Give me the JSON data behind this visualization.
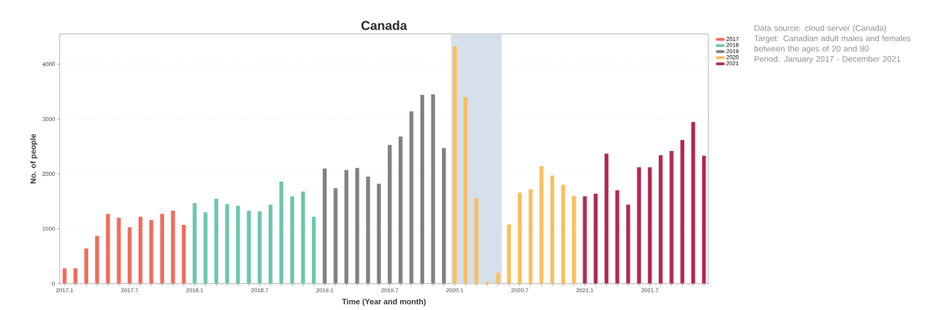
{
  "chart_data": {
    "type": "bar",
    "title": "Canada",
    "xlabel": "Time (Year and month)",
    "ylabel": "No. of people",
    "categories": [
      "2017.1",
      null,
      null,
      null,
      null,
      null,
      "2017.7",
      null,
      null,
      null,
      null,
      null,
      "2018.1",
      null,
      null,
      null,
      null,
      null,
      "2018.7",
      null,
      null,
      null,
      null,
      null,
      "2019.1",
      null,
      null,
      null,
      null,
      null,
      "2019.7",
      null,
      null,
      null,
      null,
      null,
      "2020.1",
      null,
      null,
      null,
      null,
      null,
      "2020.7",
      null,
      null,
      null,
      null,
      null,
      "2021.1",
      null,
      null,
      null,
      null,
      null,
      "2021.7",
      null,
      null,
      null,
      null,
      null
    ],
    "series": [
      {
        "name": "2017",
        "color": "#f26b5b",
        "values": [
          280,
          280,
          640,
          870,
          1270,
          1200,
          1030,
          1220,
          1160,
          1270,
          1330,
          1070,
          null,
          null,
          null,
          null,
          null,
          null,
          null,
          null,
          null,
          null,
          null,
          null,
          null,
          null,
          null,
          null,
          null,
          null,
          null,
          null,
          null,
          null,
          null,
          null,
          null,
          null,
          null,
          null,
          null,
          null,
          null,
          null,
          null,
          null,
          null,
          null,
          null,
          null,
          null,
          null,
          null,
          null,
          null,
          null,
          null,
          null,
          null,
          null
        ]
      },
      {
        "name": "2018",
        "color": "#6cc6ac",
        "values": [
          null,
          null,
          null,
          null,
          null,
          null,
          null,
          null,
          null,
          null,
          null,
          null,
          1470,
          1300,
          1550,
          1450,
          1420,
          1330,
          1320,
          1440,
          1860,
          1590,
          1680,
          1220,
          null,
          null,
          null,
          null,
          null,
          null,
          null,
          null,
          null,
          null,
          null,
          null,
          null,
          null,
          null,
          null,
          null,
          null,
          null,
          null,
          null,
          null,
          null,
          null,
          null,
          null,
          null,
          null,
          null,
          null,
          null,
          null,
          null,
          null,
          null,
          null
        ]
      },
      {
        "name": "2019",
        "color": "#818185",
        "values": [
          null,
          null,
          null,
          null,
          null,
          null,
          null,
          null,
          null,
          null,
          null,
          null,
          null,
          null,
          null,
          null,
          null,
          null,
          null,
          null,
          null,
          null,
          null,
          null,
          2100,
          1740,
          2070,
          2110,
          1950,
          1820,
          2530,
          2680,
          3140,
          3440,
          3450,
          2470,
          null,
          null,
          null,
          null,
          null,
          null,
          null,
          null,
          null,
          null,
          null,
          null,
          null,
          null,
          null,
          null,
          null,
          null,
          null,
          null,
          null,
          null,
          null,
          null
        ]
      },
      {
        "name": "2020",
        "color": "#fdbd5e",
        "values": [
          null,
          null,
          null,
          null,
          null,
          null,
          null,
          null,
          null,
          null,
          null,
          null,
          null,
          null,
          null,
          null,
          null,
          null,
          null,
          null,
          null,
          null,
          null,
          null,
          null,
          null,
          null,
          null,
          null,
          null,
          null,
          null,
          null,
          null,
          null,
          null,
          4330,
          3400,
          1560,
          30,
          200,
          1080,
          1660,
          1720,
          2140,
          1970,
          1800,
          1600,
          null,
          null,
          null,
          null,
          null,
          null,
          null,
          null,
          null,
          null,
          null,
          null
        ]
      },
      {
        "name": "2021",
        "color": "#b5284f",
        "values": [
          null,
          null,
          null,
          null,
          null,
          null,
          null,
          null,
          null,
          null,
          null,
          null,
          null,
          null,
          null,
          null,
          null,
          null,
          null,
          null,
          null,
          null,
          null,
          null,
          null,
          null,
          null,
          null,
          null,
          null,
          null,
          null,
          null,
          null,
          null,
          null,
          null,
          null,
          null,
          null,
          null,
          null,
          null,
          null,
          null,
          null,
          null,
          null,
          1590,
          1640,
          2370,
          1700,
          1440,
          2120,
          2120,
          2340,
          2420,
          2620,
          2950,
          2330
        ]
      }
    ],
    "ylim": [
      0,
      4550
    ],
    "yticks": [
      0,
      1000,
      2000,
      3000,
      4000
    ],
    "grid": "y",
    "legend": "top right",
    "annotations": [
      "Data source: cloud server (Canada)",
      "Target: Canadian adult males and females between the ages of 20 and 80",
      "Period: January 2017 - December 2021"
    ]
  }
}
